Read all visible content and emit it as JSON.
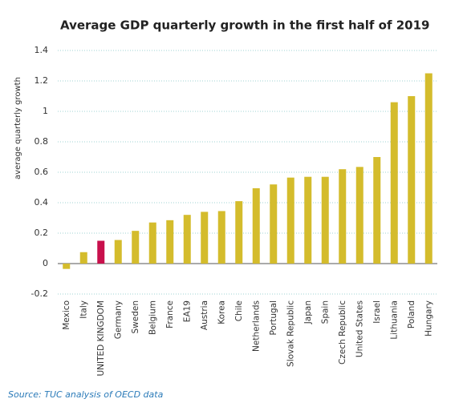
{
  "chart_data": {
    "type": "bar",
    "title": "Average GDP quarterly growth in the first half of 2019",
    "y_label": "average quarterly growth",
    "source": "Source: TUC analysis of OECD data",
    "categories": [
      "Mexico",
      "Italy",
      "UNITED KINGDOM",
      "Germany",
      "Sweden",
      "Belgium",
      "France",
      "EA19",
      "Austria",
      "Korea",
      "Chile",
      "Netherlands",
      "Portugal",
      "Slovak Republic",
      "Japan",
      "Spain",
      "Czech Republic",
      "United States",
      "Israel",
      "Lithuania",
      "Poland",
      "Hungary"
    ],
    "values": [
      -0.035,
      0.075,
      0.15,
      0.155,
      0.215,
      0.27,
      0.285,
      0.32,
      0.34,
      0.345,
      0.41,
      0.495,
      0.52,
      0.565,
      0.57,
      0.57,
      0.62,
      0.635,
      0.7,
      1.06,
      1.1,
      1.25
    ],
    "colors": [
      "#d4bc2c",
      "#d4bc2c",
      "#c8104c",
      "#d4bc2c",
      "#d4bc2c",
      "#d4bc2c",
      "#d4bc2c",
      "#d4bc2c",
      "#d4bc2c",
      "#d4bc2c",
      "#d4bc2c",
      "#d4bc2c",
      "#d4bc2c",
      "#d4bc2c",
      "#d4bc2c",
      "#d4bc2c",
      "#d4bc2c",
      "#d4bc2c",
      "#d4bc2c",
      "#d4bc2c",
      "#d4bc2c",
      "#d4bc2c"
    ],
    "ylim": [
      -0.2,
      1.4
    ],
    "yticks": [
      -0.2,
      0,
      0.2,
      0.4,
      0.6,
      0.8,
      1,
      1.2,
      1.4
    ],
    "grid": true
  }
}
